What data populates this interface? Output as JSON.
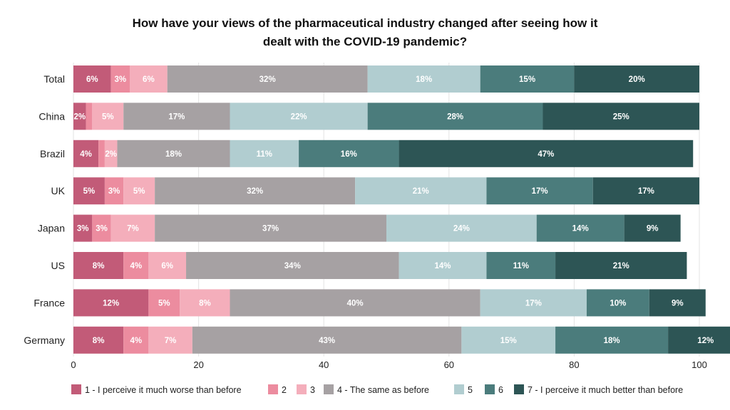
{
  "chart_data": {
    "type": "bar",
    "orientation": "horizontal",
    "stacked": true,
    "title_lines": [
      "How have your views of the pharmaceutical industry changed after seeing how it",
      "dealt with the COVID-19 pandemic?"
    ],
    "categories": [
      "Total",
      "China",
      "Brazil",
      "UK",
      "Japan",
      "US",
      "France",
      "Germany"
    ],
    "xlim": [
      0,
      100
    ],
    "xticks": [
      0,
      20,
      40,
      60,
      80,
      100
    ],
    "grid": true,
    "legend_position": "bottom",
    "series": [
      {
        "name": "1 - I perceive it much worse than before",
        "color": "#c25b78",
        "values": [
          6,
          2,
          4,
          5,
          3,
          8,
          12,
          8
        ],
        "labels": [
          "6%",
          "2%",
          "4%",
          "5%",
          "3%",
          "8%",
          "12%",
          "8%"
        ]
      },
      {
        "name": "2",
        "color": "#ec8c9f",
        "values": [
          3,
          1,
          1,
          3,
          3,
          4,
          5,
          4
        ],
        "labels": [
          "3%",
          "",
          "",
          "3%",
          "3%",
          "4%",
          "5%",
          "4%"
        ]
      },
      {
        "name": "3",
        "color": "#f4aebb",
        "values": [
          6,
          5,
          2,
          5,
          7,
          6,
          8,
          7
        ],
        "labels": [
          "6%",
          "5%",
          "2%",
          "5%",
          "7%",
          "6%",
          "8%",
          "7%"
        ]
      },
      {
        "name": "4 - The same as before",
        "color": "#a6a1a3",
        "values": [
          32,
          17,
          18,
          32,
          37,
          34,
          40,
          43
        ],
        "labels": [
          "32%",
          "17%",
          "18%",
          "32%",
          "37%",
          "34%",
          "40%",
          "43%"
        ]
      },
      {
        "name": "5",
        "color": "#b1cdd0",
        "values": [
          18,
          22,
          11,
          21,
          24,
          14,
          17,
          15
        ],
        "labels": [
          "18%",
          "22%",
          "11%",
          "21%",
          "24%",
          "14%",
          "17%",
          "15%"
        ]
      },
      {
        "name": "6",
        "color": "#4b7c7c",
        "values": [
          15,
          28,
          16,
          17,
          14,
          11,
          10,
          18
        ],
        "labels": [
          "15%",
          "28%",
          "16%",
          "17%",
          "14%",
          "11%",
          "10%",
          "18%"
        ]
      },
      {
        "name": "7 - I perceive it much better than before",
        "color": "#2d5555",
        "values": [
          20,
          25,
          47,
          17,
          9,
          21,
          9,
          12
        ],
        "labels": [
          "20%",
          "25%",
          "47%",
          "17%",
          "9%",
          "21%",
          "9%",
          "12%"
        ]
      }
    ]
  }
}
